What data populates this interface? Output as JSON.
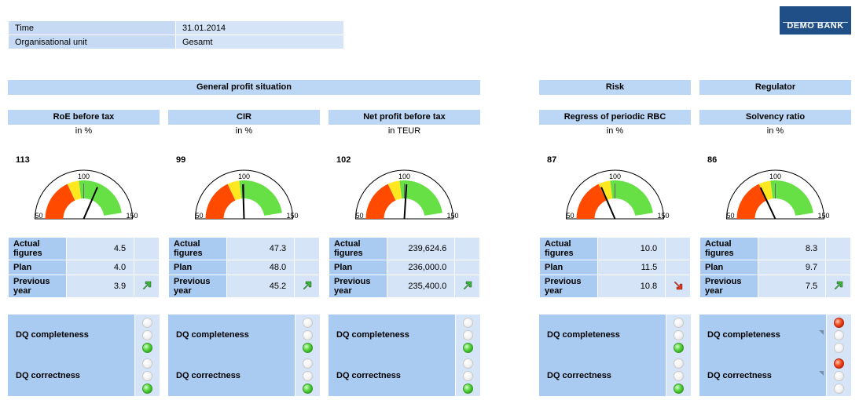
{
  "header": {
    "rows": [
      {
        "label": "Time",
        "value": "31.01.2014"
      },
      {
        "label": "Organisational unit",
        "value": "Gesamt"
      }
    ],
    "logo_text": "DEMO BANK"
  },
  "sections": {
    "general": "General profit situation",
    "risk": "Risk",
    "regulator": "Regulator"
  },
  "labels": {
    "actual": "Actual figures",
    "plan": "Plan",
    "previous": "Previous year",
    "dq_completeness": "DQ completeness",
    "dq_correctness": "DQ correctness"
  },
  "panels": [
    {
      "title": "RoE before tax",
      "unit": "in %",
      "gauge_value": "113",
      "gauge_ticks": [
        "50",
        "100",
        "150"
      ],
      "needle_value": 113,
      "actual": "4.5",
      "plan": "4.0",
      "previous": "3.9",
      "trend": "up",
      "dq": {
        "completeness": "green",
        "correctness": "green"
      }
    },
    {
      "title": "CIR",
      "unit": "in %",
      "gauge_value": "99",
      "gauge_ticks": [
        "50",
        "100",
        "150"
      ],
      "needle_value": 99,
      "actual": "47.3",
      "plan": "48.0",
      "previous": "45.2",
      "trend": "up",
      "dq": {
        "completeness": "green",
        "correctness": "green"
      }
    },
    {
      "title": "Net profit before tax",
      "unit": "in TEUR",
      "gauge_value": "102",
      "gauge_ticks": [
        "50",
        "100",
        "150"
      ],
      "needle_value": 102,
      "actual": "239,624.6",
      "plan": "236,000.0",
      "previous": "235,400.0",
      "trend": "up",
      "dq": {
        "completeness": "green",
        "correctness": "green"
      }
    },
    {
      "title": "Regress of periodic RBC",
      "unit": "in %",
      "gauge_value": "87",
      "gauge_ticks": [
        "50",
        "100",
        "150"
      ],
      "needle_value": 87,
      "actual": "10.0",
      "plan": "11.5",
      "previous": "10.8",
      "trend": "down",
      "dq": {
        "completeness": "green",
        "correctness": "green"
      }
    },
    {
      "title": "Solvency ratio",
      "unit": "in %",
      "gauge_value": "86",
      "gauge_ticks": [
        "50",
        "100",
        "150"
      ],
      "needle_value": 86,
      "actual": "8.3",
      "plan": "9.7",
      "previous": "7.5",
      "trend": "up",
      "dq": {
        "completeness": "red",
        "correctness": "red"
      }
    }
  ],
  "colors": {
    "header_bg": "#bcd7f5",
    "label_bg": "#a9cbf1",
    "cell_bg": "#d6e4f7",
    "gauge_red": "#ff4a00",
    "gauge_yellow": "#ffe81f",
    "gauge_green": "#66e045",
    "arrow_up": "#38b838",
    "arrow_down": "#e8331a",
    "logo_bg": "#1f4f86"
  }
}
